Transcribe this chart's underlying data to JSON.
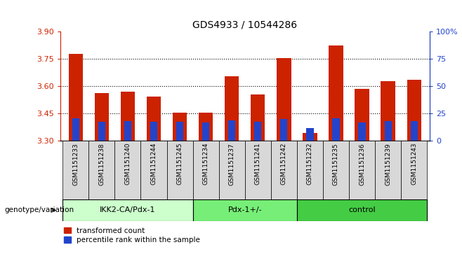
{
  "title": "GDS4933 / 10544286",
  "samples": [
    "GSM1151233",
    "GSM1151238",
    "GSM1151240",
    "GSM1151244",
    "GSM1151245",
    "GSM1151234",
    "GSM1151237",
    "GSM1151241",
    "GSM1151242",
    "GSM1151232",
    "GSM1151235",
    "GSM1151236",
    "GSM1151239",
    "GSM1151243"
  ],
  "transformed_counts": [
    3.78,
    3.565,
    3.57,
    3.545,
    3.455,
    3.455,
    3.655,
    3.555,
    3.755,
    3.345,
    3.825,
    3.585,
    3.63,
    3.635
  ],
  "percentile_values": [
    3.425,
    3.405,
    3.41,
    3.405,
    3.405,
    3.4,
    3.415,
    3.405,
    3.42,
    3.37,
    3.425,
    3.4,
    3.41,
    3.41
  ],
  "groups": [
    {
      "label": "IKK2-CA/Pdx-1",
      "start": 0,
      "end": 5,
      "color": "#ccffcc"
    },
    {
      "label": "Pdx-1+/-",
      "start": 5,
      "end": 9,
      "color": "#77ee77"
    },
    {
      "label": "control",
      "start": 9,
      "end": 14,
      "color": "#44cc44"
    }
  ],
  "ylim_left": [
    3.3,
    3.9
  ],
  "ylim_right": [
    0,
    100
  ],
  "yticks_left": [
    3.3,
    3.45,
    3.6,
    3.75,
    3.9
  ],
  "yticks_right": [
    0,
    25,
    50,
    75,
    100
  ],
  "bar_width": 0.55,
  "bar_color": "#cc2200",
  "percentile_color": "#2244cc",
  "dotted_lines": [
    3.45,
    3.6,
    3.75
  ],
  "genotype_label": "genotype/variation",
  "legend_entries": [
    "transformed count",
    "percentile rank within the sample"
  ]
}
